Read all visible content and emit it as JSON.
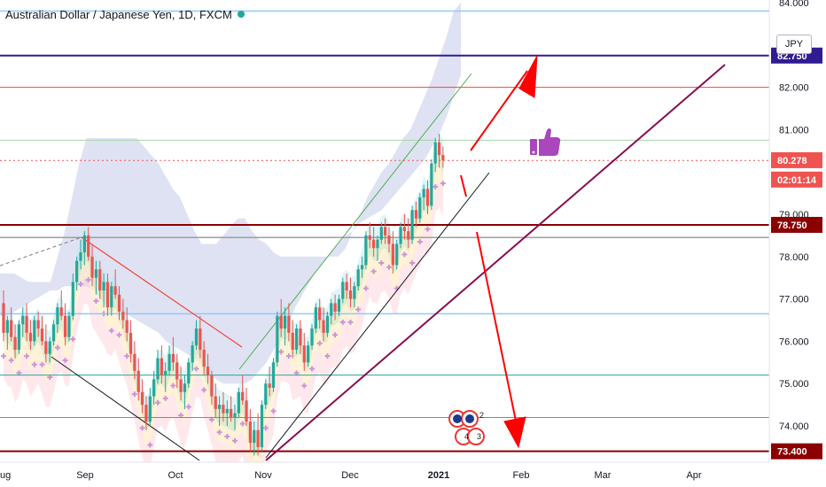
{
  "header": {
    "title": "Australian Dollar / Japanese Yen, 1D, FXCM",
    "currency": "JPY"
  },
  "chart_data": {
    "type": "candlestick",
    "symbol": "AUD/JPY",
    "ylim": [
      73.2,
      84.2
    ],
    "y_ticks": [
      "84.000",
      "82.000",
      "81.000",
      "79.000",
      "78.000",
      "77.000",
      "76.000",
      "75.000",
      "74.000"
    ],
    "y_tick_values": [
      84.0,
      82.0,
      81.0,
      79.0,
      78.0,
      77.0,
      76.0,
      75.0,
      74.0
    ],
    "y_tick_partial": [
      "84.000",
      "82.000",
      "79.000"
    ],
    "x_ticks": [
      "ug",
      "Sep",
      "Oct",
      "Nov",
      "Dec",
      "2021",
      "Feb",
      "Mar",
      "Apr"
    ],
    "price_labels": [
      {
        "text": "82.750",
        "value": 82.75,
        "color": "#311b92"
      },
      {
        "text": "80.278",
        "value": 80.278,
        "color": "#ef5350"
      },
      {
        "text": "02:01:14",
        "value": 79.82,
        "color": "#ef5350"
      },
      {
        "text": "78.750",
        "value": 78.75,
        "color": "#8b0000"
      },
      {
        "text": "73.400",
        "value": 73.4,
        "color": "#8b0000"
      }
    ],
    "horizontal_levels": [
      {
        "value": 83.8,
        "color": "#90caf9",
        "width": 1.5
      },
      {
        "value": 82.75,
        "color": "#311b92",
        "width": 2
      },
      {
        "value": 82.0,
        "color": "#f44336",
        "width": 1
      },
      {
        "value": 80.75,
        "color": "#a5d6a7",
        "width": 1
      },
      {
        "value": 80.27,
        "color": "#ef5350",
        "width": 1,
        "dash": "2,3"
      },
      {
        "value": 78.75,
        "color": "#8b0000",
        "width": 2
      },
      {
        "value": 78.45,
        "color": "#9e9e9e",
        "width": 1.5
      },
      {
        "value": 76.65,
        "color": "#90caf9",
        "width": 1.5
      },
      {
        "value": 75.2,
        "color": "#26a69a",
        "width": 1
      },
      {
        "value": 74.2,
        "color": "#4caf50",
        "width": 1
      },
      {
        "value": 73.4,
        "color": "#8b0000",
        "width": 2
      }
    ],
    "candle_colors": {
      "up": "#26a69a",
      "down": "#ef5350"
    },
    "candles": [
      [
        76.9,
        77.2,
        76.0,
        76.2
      ],
      [
        76.2,
        76.6,
        75.8,
        76.5
      ],
      [
        76.5,
        76.8,
        76.0,
        76.1
      ],
      [
        76.1,
        76.4,
        75.6,
        75.8
      ],
      [
        75.8,
        76.5,
        75.7,
        76.4
      ],
      [
        76.4,
        76.8,
        76.1,
        76.6
      ],
      [
        76.6,
        76.9,
        76.0,
        76.2
      ],
      [
        76.2,
        76.5,
        75.8,
        76.0
      ],
      [
        76.0,
        76.6,
        75.9,
        76.5
      ],
      [
        76.5,
        76.7,
        76.1,
        76.3
      ],
      [
        76.3,
        76.6,
        75.9,
        76.0
      ],
      [
        76.0,
        76.4,
        75.5,
        75.7
      ],
      [
        75.7,
        76.1,
        75.5,
        76.0
      ],
      [
        76.0,
        76.5,
        75.9,
        76.4
      ],
      [
        76.4,
        76.9,
        76.2,
        76.8
      ],
      [
        76.8,
        77.2,
        76.5,
        76.6
      ],
      [
        76.6,
        76.9,
        75.9,
        76.1
      ],
      [
        76.1,
        76.7,
        76.0,
        76.6
      ],
      [
        76.6,
        77.6,
        76.5,
        77.4
      ],
      [
        77.4,
        78.0,
        77.2,
        77.9
      ],
      [
        77.9,
        78.4,
        77.7,
        78.1
      ],
      [
        78.1,
        78.6,
        77.8,
        78.5
      ],
      [
        78.5,
        78.7,
        77.9,
        78.0
      ],
      [
        78.0,
        78.3,
        77.3,
        77.5
      ],
      [
        77.5,
        77.9,
        77.1,
        77.7
      ],
      [
        77.7,
        77.9,
        77.0,
        77.2
      ],
      [
        77.2,
        77.6,
        76.8,
        77.4
      ],
      [
        77.4,
        77.6,
        76.6,
        76.8
      ],
      [
        76.8,
        77.4,
        76.6,
        77.3
      ],
      [
        77.3,
        77.7,
        77.0,
        77.1
      ],
      [
        77.1,
        77.3,
        76.5,
        76.7
      ],
      [
        76.7,
        77.0,
        76.3,
        76.5
      ],
      [
        76.5,
        76.8,
        76.0,
        76.2
      ],
      [
        76.2,
        76.5,
        75.5,
        75.7
      ],
      [
        75.7,
        76.0,
        75.1,
        75.3
      ],
      [
        75.3,
        75.6,
        74.6,
        74.8
      ],
      [
        74.8,
        75.1,
        74.3,
        74.5
      ],
      [
        74.5,
        74.7,
        73.9,
        74.1
      ],
      [
        74.1,
        74.9,
        74.0,
        74.7
      ],
      [
        74.7,
        75.3,
        74.5,
        75.1
      ],
      [
        75.1,
        75.8,
        75.0,
        75.6
      ],
      [
        75.6,
        75.9,
        75.0,
        75.2
      ],
      [
        75.2,
        75.5,
        74.8,
        75.3
      ],
      [
        75.3,
        75.9,
        75.2,
        75.7
      ],
      [
        75.7,
        76.1,
        75.3,
        75.5
      ],
      [
        75.5,
        75.7,
        74.9,
        75.1
      ],
      [
        75.1,
        75.4,
        74.6,
        74.8
      ],
      [
        74.8,
        75.2,
        74.4,
        75.0
      ],
      [
        75.0,
        75.6,
        74.9,
        75.5
      ],
      [
        75.5,
        76.0,
        75.3,
        75.9
      ],
      [
        75.9,
        76.5,
        75.8,
        76.3
      ],
      [
        76.3,
        76.6,
        75.6,
        75.8
      ],
      [
        75.8,
        76.0,
        75.2,
        75.4
      ],
      [
        75.4,
        75.7,
        75.0,
        75.2
      ],
      [
        75.2,
        75.3,
        74.5,
        74.7
      ],
      [
        74.7,
        75.0,
        74.2,
        74.4
      ],
      [
        74.4,
        74.7,
        74.0,
        74.5
      ],
      [
        74.5,
        74.8,
        74.1,
        74.3
      ],
      [
        74.3,
        74.6,
        74.0,
        74.4
      ],
      [
        74.4,
        74.7,
        74.1,
        74.2
      ],
      [
        74.2,
        74.5,
        73.9,
        74.3
      ],
      [
        74.3,
        74.9,
        74.2,
        74.8
      ],
      [
        74.8,
        75.2,
        74.5,
        74.6
      ],
      [
        74.6,
        74.9,
        74.0,
        74.1
      ],
      [
        74.1,
        74.4,
        73.4,
        73.6
      ],
      [
        73.6,
        74.1,
        73.3,
        73.9
      ],
      [
        73.9,
        74.3,
        73.3,
        73.5
      ],
      [
        73.5,
        74.6,
        73.4,
        74.5
      ],
      [
        74.5,
        75.1,
        74.4,
        75.0
      ],
      [
        75.0,
        75.4,
        74.7,
        74.9
      ],
      [
        74.9,
        75.6,
        74.8,
        75.5
      ],
      [
        75.5,
        76.7,
        75.4,
        76.6
      ],
      [
        76.6,
        77.0,
        76.1,
        76.3
      ],
      [
        76.3,
        76.8,
        75.9,
        76.6
      ],
      [
        76.6,
        76.9,
        76.0,
        76.2
      ],
      [
        76.2,
        76.5,
        75.6,
        75.8
      ],
      [
        75.8,
        76.4,
        75.7,
        76.3
      ],
      [
        76.3,
        76.5,
        75.7,
        75.9
      ],
      [
        75.9,
        76.2,
        75.3,
        75.5
      ],
      [
        75.5,
        76.0,
        75.4,
        75.9
      ],
      [
        75.9,
        76.4,
        75.8,
        76.3
      ],
      [
        76.3,
        76.9,
        76.2,
        76.8
      ],
      [
        76.8,
        77.0,
        76.3,
        76.5
      ],
      [
        76.5,
        76.8,
        76.0,
        76.2
      ],
      [
        76.2,
        76.7,
        76.1,
        76.6
      ],
      [
        76.6,
        77.0,
        76.4,
        76.9
      ],
      [
        76.9,
        77.1,
        76.5,
        76.7
      ],
      [
        76.7,
        77.1,
        76.6,
        77.0
      ],
      [
        77.0,
        77.5,
        76.9,
        77.4
      ],
      [
        77.4,
        77.6,
        77.0,
        77.2
      ],
      [
        77.2,
        77.5,
        76.8,
        77.0
      ],
      [
        77.0,
        77.4,
        76.8,
        77.3
      ],
      [
        77.3,
        77.8,
        77.2,
        77.7
      ],
      [
        77.7,
        78.0,
        77.5,
        77.8
      ],
      [
        77.8,
        78.6,
        77.7,
        78.5
      ],
      [
        78.5,
        78.8,
        78.2,
        78.4
      ],
      [
        78.4,
        78.7,
        78.0,
        78.2
      ],
      [
        78.2,
        78.5,
        77.9,
        78.4
      ],
      [
        78.4,
        78.8,
        78.3,
        78.7
      ],
      [
        78.7,
        78.9,
        78.3,
        78.5
      ],
      [
        78.5,
        78.7,
        78.1,
        78.3
      ],
      [
        78.3,
        78.6,
        77.6,
        77.8
      ],
      [
        77.8,
        78.4,
        77.7,
        78.3
      ],
      [
        78.3,
        78.8,
        78.2,
        78.7
      ],
      [
        78.7,
        79.0,
        78.4,
        78.6
      ],
      [
        78.6,
        78.9,
        78.2,
        78.4
      ],
      [
        78.4,
        79.2,
        78.3,
        79.1
      ],
      [
        79.1,
        79.3,
        78.7,
        78.9
      ],
      [
        78.9,
        79.5,
        78.8,
        79.4
      ],
      [
        79.4,
        79.7,
        79.1,
        79.6
      ],
      [
        79.6,
        79.8,
        79.0,
        79.2
      ],
      [
        79.2,
        80.3,
        79.1,
        80.2
      ],
      [
        80.2,
        80.8,
        80.0,
        80.7
      ],
      [
        80.7,
        80.9,
        80.1,
        80.4
      ],
      [
        80.4,
        80.6,
        80.1,
        80.28
      ]
    ],
    "cloud_upper": [
      77.6,
      77.6,
      77.6,
      77.5,
      77.4,
      77.4,
      77.4,
      77.4,
      78.0,
      78.6,
      79.4,
      80.2,
      80.8,
      80.8,
      80.8,
      80.8,
      80.8,
      80.8,
      80.8,
      80.8,
      80.6,
      80.4,
      80.2,
      79.9,
      79.6,
      79.4,
      79.0,
      78.6,
      78.3,
      78.3,
      78.3,
      78.5,
      78.7,
      78.9,
      78.9,
      78.6,
      78.4,
      78.3,
      78.1,
      78.0,
      78.0,
      78.0,
      78.0,
      78.0,
      78.0,
      78.0,
      78.0,
      78.0,
      78.2,
      78.6,
      79.0,
      79.4,
      79.7,
      80.0,
      80.2,
      80.5,
      80.8,
      81.0,
      81.4,
      81.8,
      82.2,
      82.7,
      83.2,
      83.8,
      84.0
    ],
    "cloud_lower": [
      76.6,
      76.6,
      76.7,
      76.8,
      76.9,
      77.0,
      77.1,
      77.2,
      77.2,
      77.3,
      77.3,
      77.3,
      77.3,
      77.2,
      77.0,
      76.9,
      76.8,
      76.7,
      76.6,
      76.5,
      76.4,
      76.3,
      76.2,
      76.0,
      75.9,
      75.8,
      75.7,
      75.6,
      75.4,
      75.2,
      75.1,
      75.0,
      75.0,
      75.0,
      75.0,
      75.1,
      75.3,
      75.5,
      75.8,
      76.1,
      76.4,
      76.8,
      77.1,
      77.4,
      77.7,
      77.9,
      78.1,
      78.3,
      78.5,
      78.6,
      78.8,
      78.9,
      79.0,
      79.1,
      79.3,
      79.5,
      79.7,
      79.9,
      80.1,
      80.3,
      80.6,
      80.9,
      81.3,
      81.8,
      82.3
    ]
  }
}
